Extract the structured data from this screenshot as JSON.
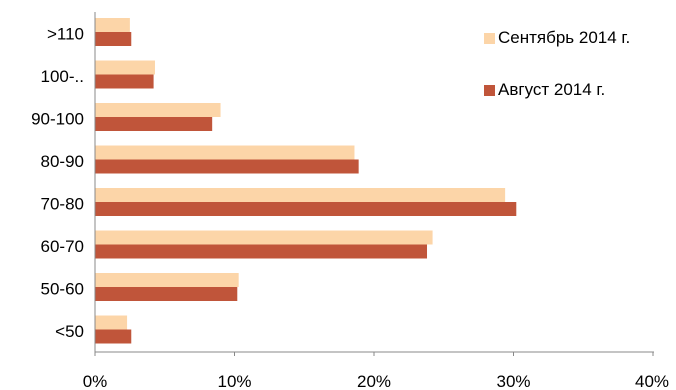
{
  "chart_data": {
    "type": "bar",
    "orientation": "horizontal",
    "categories": [
      ">110",
      "100-..",
      "90-100",
      "80-90",
      "70-80",
      "60-70",
      "50-60",
      "<50"
    ],
    "series": [
      {
        "name": "Сентябрь 2014 г.",
        "color": "#FCD5A8",
        "values": [
          2.5,
          4.3,
          9.0,
          18.6,
          29.4,
          24.2,
          10.3,
          2.3
        ]
      },
      {
        "name": "Август 2014 г.",
        "color": "#C0553A",
        "values": [
          2.6,
          4.2,
          8.4,
          18.9,
          30.2,
          23.8,
          10.2,
          2.6
        ]
      }
    ],
    "x_ticks": [
      "0%",
      "10%",
      "20%",
      "30%",
      "40%"
    ],
    "xlim": [
      0,
      40
    ],
    "grid": false,
    "legend_position": "top-right"
  }
}
